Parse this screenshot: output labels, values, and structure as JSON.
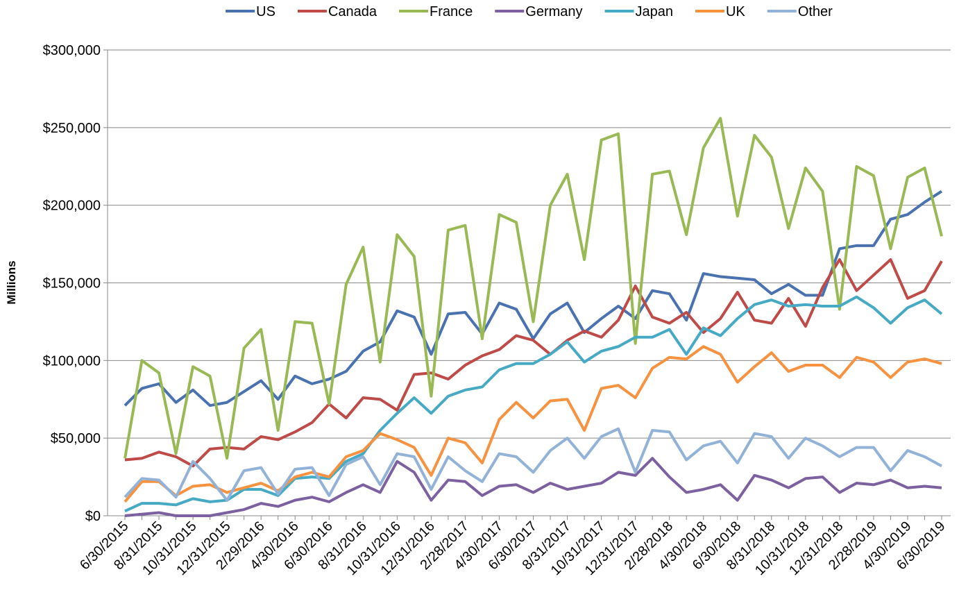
{
  "chart_data": {
    "type": "line",
    "y_axis_label": "Millions",
    "categories": [
      "6/30/2015",
      null,
      "8/31/2015",
      null,
      "10/31/2015",
      null,
      "12/31/2015",
      null,
      "2/29/2016",
      null,
      "4/30/2016",
      null,
      "6/30/2016",
      null,
      "8/31/2016",
      null,
      "10/31/2016",
      null,
      "12/31/2016",
      null,
      "2/28/2017",
      null,
      "4/30/2017",
      null,
      "6/30/2017",
      null,
      "8/31/2017",
      null,
      "10/31/2017",
      null,
      "12/31/2017",
      null,
      "2/28/2018",
      null,
      "4/30/2018",
      null,
      "6/30/2018",
      null,
      "8/31/2018",
      null,
      "10/31/2018",
      null,
      "12/31/2018",
      null,
      "2/28/2019",
      null,
      "4/30/2019",
      null,
      "6/30/2019"
    ],
    "series": [
      {
        "name": "US",
        "color": "#4a72b0",
        "values": [
          71000,
          82000,
          85000,
          73000,
          81000,
          71000,
          73000,
          80000,
          87000,
          75000,
          90000,
          85000,
          88000,
          93000,
          106000,
          112000,
          132000,
          128000,
          104000,
          130000,
          131000,
          117000,
          137000,
          133000,
          114000,
          130000,
          137000,
          118000,
          127000,
          135000,
          127000,
          145000,
          143000,
          126000,
          156000,
          154000,
          153000,
          152000,
          143000,
          149000,
          142000,
          142000,
          172000,
          174000,
          174000,
          191000,
          194000,
          202000,
          209000
        ]
      },
      {
        "name": "Canada",
        "color": "#be4b48",
        "values": [
          36000,
          37000,
          41000,
          38000,
          32000,
          43000,
          44000,
          43000,
          51000,
          49000,
          54000,
          60000,
          72000,
          63000,
          76000,
          75000,
          68000,
          91000,
          92000,
          88000,
          97000,
          103000,
          107000,
          116000,
          113000,
          104000,
          113000,
          119000,
          115000,
          126000,
          148000,
          128000,
          124000,
          131000,
          118000,
          127000,
          144000,
          126000,
          124000,
          140000,
          122000,
          147000,
          165000,
          145000,
          155000,
          165000,
          140000,
          145000,
          164000
        ]
      },
      {
        "name": "France",
        "color": "#98b954",
        "values": [
          37000,
          100000,
          92000,
          40000,
          96000,
          90000,
          37000,
          108000,
          120000,
          55000,
          125000,
          124000,
          72000,
          149000,
          173000,
          99000,
          181000,
          167000,
          77000,
          184000,
          187000,
          114000,
          194000,
          189000,
          125000,
          200000,
          220000,
          165000,
          242000,
          246000,
          111000,
          220000,
          222000,
          181000,
          237000,
          256000,
          193000,
          245000,
          231000,
          185000,
          224000,
          209000,
          133000,
          225000,
          219000,
          172000,
          218000,
          224000,
          180000
        ]
      },
      {
        "name": "Germany",
        "color": "#7d60a0",
        "values": [
          0,
          1000,
          2000,
          0,
          0,
          0,
          2000,
          4000,
          8000,
          6000,
          10000,
          12000,
          9000,
          15000,
          20000,
          15000,
          35000,
          28000,
          10000,
          23000,
          22000,
          13000,
          19000,
          20000,
          15000,
          21000,
          17000,
          19000,
          21000,
          28000,
          26000,
          37000,
          25000,
          15000,
          17000,
          20000,
          10000,
          26000,
          23000,
          18000,
          24000,
          25000,
          15000,
          21000,
          20000,
          23000,
          18000,
          19000,
          18000
        ]
      },
      {
        "name": "Japan",
        "color": "#46aac5",
        "values": [
          3000,
          8000,
          8000,
          7000,
          11000,
          9000,
          10000,
          17000,
          17000,
          13000,
          24000,
          25000,
          24000,
          35000,
          40000,
          55000,
          66000,
          76000,
          66000,
          77000,
          81000,
          83000,
          94000,
          98000,
          98000,
          104000,
          112000,
          99000,
          106000,
          109000,
          115000,
          115000,
          120000,
          104000,
          121000,
          116000,
          127000,
          136000,
          139000,
          135000,
          136000,
          135000,
          135000,
          141000,
          134000,
          124000,
          134000,
          139000,
          130000
        ]
      },
      {
        "name": "UK",
        "color": "#f69240",
        "values": [
          9000,
          22000,
          22000,
          13000,
          19000,
          20000,
          15000,
          18000,
          21000,
          16000,
          25000,
          28000,
          25000,
          38000,
          42000,
          53000,
          49000,
          44000,
          26000,
          50000,
          47000,
          34000,
          62000,
          73000,
          63000,
          74000,
          75000,
          55000,
          82000,
          84000,
          76000,
          95000,
          102000,
          101000,
          109000,
          104000,
          86000,
          96000,
          105000,
          93000,
          97000,
          97000,
          89000,
          102000,
          99000,
          89000,
          99000,
          101000,
          98000
        ]
      },
      {
        "name": "Other",
        "color": "#93b2d8",
        "values": [
          12000,
          24000,
          23000,
          12000,
          35000,
          24000,
          10000,
          29000,
          31000,
          14000,
          30000,
          31000,
          13000,
          33000,
          38000,
          20000,
          40000,
          38000,
          17000,
          38000,
          29000,
          22000,
          40000,
          38000,
          28000,
          42000,
          50000,
          37000,
          51000,
          56000,
          28000,
          55000,
          54000,
          36000,
          45000,
          48000,
          34000,
          53000,
          51000,
          37000,
          50000,
          45000,
          38000,
          44000,
          44000,
          29000,
          42000,
          38000,
          32000
        ]
      }
    ],
    "ylim": [
      0,
      300000
    ],
    "yticks": [
      {
        "value": 0,
        "label": "$0"
      },
      {
        "value": 50000,
        "label": "$50,000"
      },
      {
        "value": 100000,
        "label": "$100,000"
      },
      {
        "value": 150000,
        "label": "$150,000"
      },
      {
        "value": 200000,
        "label": "$200,000"
      },
      {
        "value": 250000,
        "label": "$250,000"
      },
      {
        "value": 300000,
        "label": "$300,000"
      }
    ],
    "grid": true,
    "legend": "top"
  }
}
